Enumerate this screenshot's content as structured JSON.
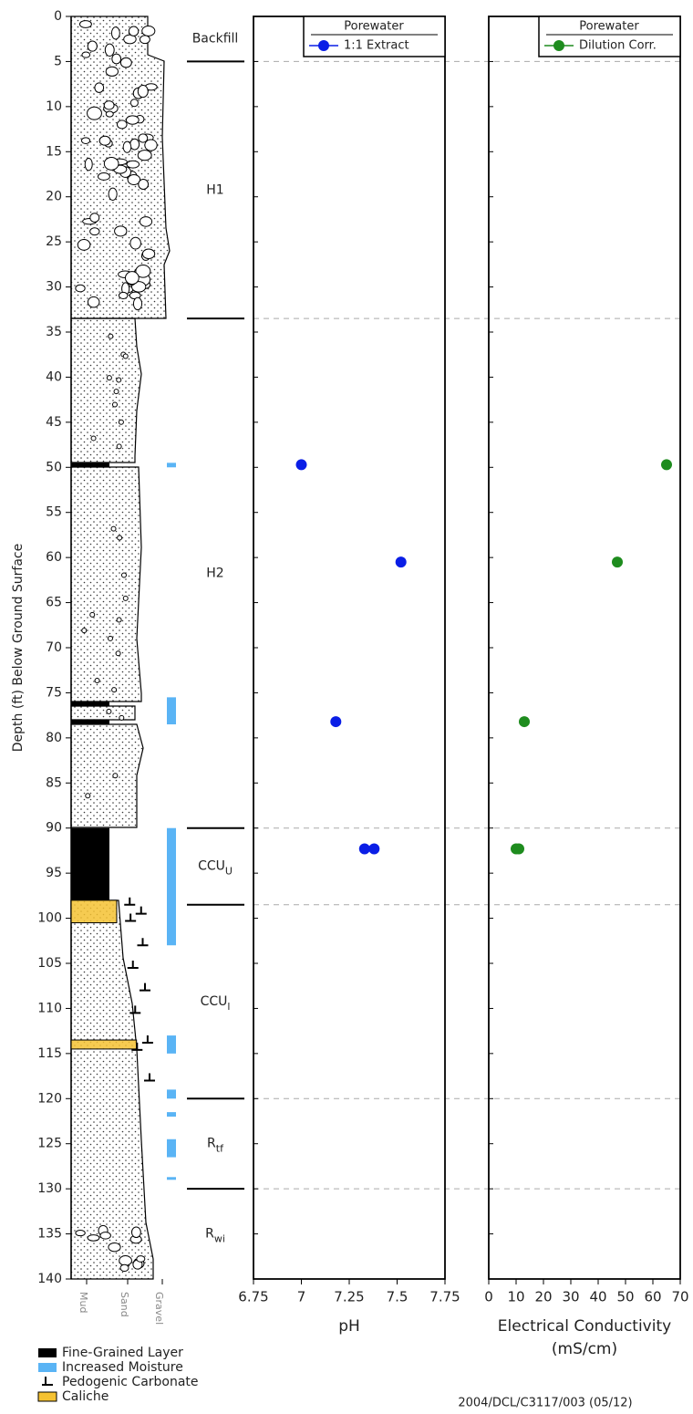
{
  "depth_axis": {
    "label": "Depth (ft) Below Ground Surface",
    "lim": [
      0,
      140
    ],
    "inverted": true,
    "ticks": [
      0,
      5,
      10,
      15,
      20,
      25,
      30,
      35,
      40,
      45,
      50,
      55,
      60,
      65,
      70,
      75,
      80,
      85,
      90,
      95,
      100,
      105,
      110,
      115,
      120,
      125,
      130,
      135,
      140
    ]
  },
  "log": {
    "grain_sizes": [
      "Mud",
      "Sand",
      "Gravel"
    ],
    "fine_grained_layers": [
      [
        49.5,
        50
      ],
      [
        76,
        76.5
      ],
      [
        78,
        78.5
      ],
      [
        90,
        98
      ]
    ],
    "caliche": [
      [
        98,
        100.5
      ],
      [
        113.5,
        114.5
      ]
    ],
    "moisture": [
      [
        49.5,
        50
      ],
      [
        75.5,
        78.5
      ],
      [
        90,
        103
      ],
      [
        113,
        115
      ],
      [
        119,
        120
      ],
      [
        121.5,
        122
      ],
      [
        124.5,
        126.5
      ],
      [
        128.7,
        129
      ]
    ],
    "carbonate_depths": [
      98.5,
      99.5,
      100.3,
      103,
      105.5,
      108,
      110.5,
      113.8,
      114.6,
      118
    ],
    "boundaries": [
      5,
      33.5,
      90,
      98.5,
      120,
      130
    ],
    "units": [
      {
        "text": "Backfill"
      },
      {
        "text": "H1"
      },
      {
        "text": "H2"
      },
      {
        "text": "CCU",
        "sub": "U"
      },
      {
        "text": "CCU",
        "sub": "l"
      },
      {
        "text": "R",
        "sub": "tf"
      },
      {
        "text": "R",
        "sub": "wi"
      }
    ]
  },
  "chart_data": [
    {
      "type": "scatter",
      "xlabel": [
        "pH"
      ],
      "xlim": [
        6.75,
        7.75
      ],
      "xticks": [
        6.75,
        7,
        7.25,
        7.5,
        7.75
      ],
      "legend_title": "Porewater",
      "series": [
        {
          "name": "1:1 Extract",
          "color": "#0a1ee6",
          "depth": [
            49.7,
            60.5,
            78.2,
            92.3,
            92.3
          ],
          "values": [
            7.0,
            7.52,
            7.18,
            7.33,
            7.38
          ]
        }
      ]
    },
    {
      "type": "scatter",
      "xlabel": [
        "Electrical Conductivity",
        "(mS/cm)"
      ],
      "xlim": [
        0,
        70
      ],
      "xticks": [
        0,
        10,
        20,
        30,
        40,
        50,
        60,
        70
      ],
      "legend_title": "Porewater",
      "series": [
        {
          "name": "Dilution Corr.",
          "color": "#1e8c1e",
          "depth": [
            49.7,
            60.5,
            78.2,
            92.3,
            92.3
          ],
          "values": [
            65,
            47,
            13,
            10,
            11
          ]
        }
      ]
    }
  ],
  "legend": [
    {
      "label": "Fine-Grained Layer",
      "color": "#000000"
    },
    {
      "label": "Increased Moisture",
      "color": "#5ab4f5"
    },
    {
      "label": "Pedogenic Carbonate"
    },
    {
      "label": "Caliche",
      "color": "#f5c232"
    }
  ],
  "footer": "2004/DCL/C3117/003 (05/12)"
}
